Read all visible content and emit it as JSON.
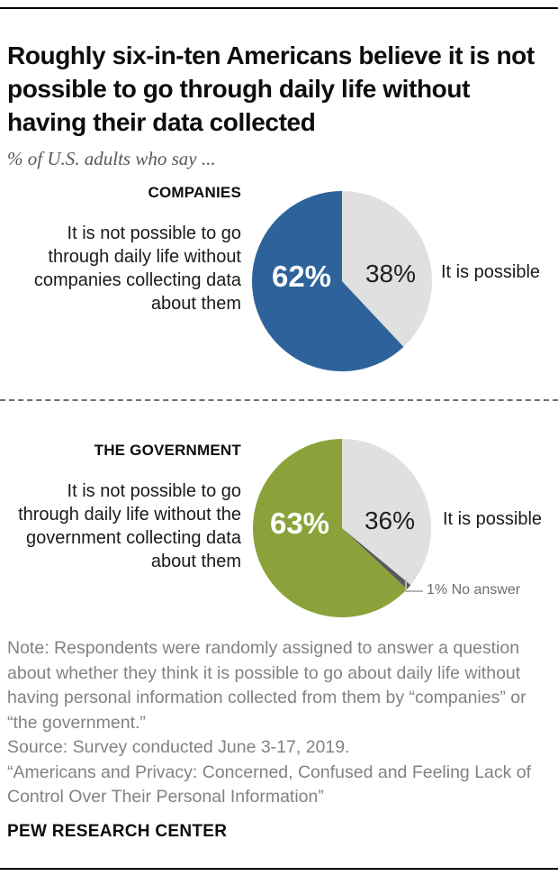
{
  "header": {
    "title": "Roughly six-in-ten Americans believe it is not possible to go through daily life without having their data collected",
    "subtitle": "% of U.S. adults who say ..."
  },
  "companies": {
    "label": "COMPANIES",
    "description": "It is not possible to go through daily life without companies collecting data about them",
    "major_pct": "62%",
    "minor_pct": "38%",
    "right_label": "It is possible"
  },
  "government": {
    "label": "THE GOVERNMENT",
    "description": "It is not possible to go through daily life without the government collecting data about them",
    "major_pct": "63%",
    "minor_pct": "36%",
    "right_label": "It is possible",
    "callout_label": "1% No answer"
  },
  "notes": {
    "note": "Note: Respondents were randomly assigned to answer a question about whether they think it is possible to go about daily life without having personal information collected from them by “companies” or “the government.”",
    "source": "Source: Survey conducted June 3-17, 2019.",
    "quote": "“Americans and Privacy: Concerned, Confused and Feeling Lack of Control Over Their Personal Information”"
  },
  "brand": "PEW RESEARCH CENTER",
  "colors": {
    "companies_main": "#2d639a",
    "government_main": "#8ba23a",
    "possible_gray": "#e0e0e0",
    "no_answer_dark": "#58595b"
  },
  "chart_data": [
    {
      "type": "pie",
      "title": "COMPANIES",
      "start_angle_deg": 0,
      "direction": "clockwise",
      "slices": [
        {
          "label": "It is possible",
          "value": 38,
          "color": "#e0e0e0"
        },
        {
          "label": "It is not possible to go through daily life without companies collecting data about them",
          "value": 62,
          "color": "#2d639a"
        }
      ]
    },
    {
      "type": "pie",
      "title": "THE GOVERNMENT",
      "start_angle_deg": 0,
      "direction": "clockwise",
      "slices": [
        {
          "label": "It is possible",
          "value": 36,
          "color": "#e0e0e0"
        },
        {
          "label": "No answer",
          "value": 1,
          "color": "#58595b"
        },
        {
          "label": "It is not possible to go through daily life without the government collecting data about them",
          "value": 63,
          "color": "#8ba23a"
        }
      ]
    }
  ]
}
